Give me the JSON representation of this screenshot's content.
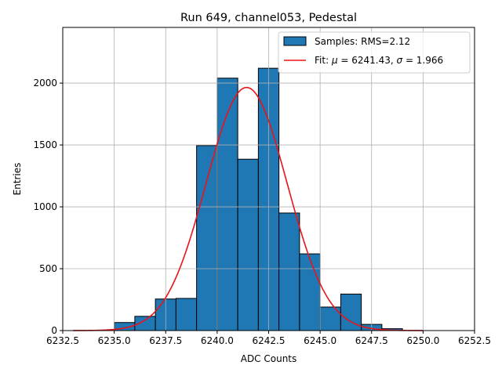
{
  "chart_data": {
    "type": "bar",
    "title": "Run 649, channel053, Pedestal",
    "xlabel": "ADC Counts",
    "ylabel": "Entries",
    "xlim": [
      6232.5,
      6252.5
    ],
    "ylim": [
      0,
      2450
    ],
    "x_ticks": [
      6232.5,
      6235.0,
      6237.5,
      6240.0,
      6242.5,
      6245.0,
      6247.5,
      6250.0,
      6252.5
    ],
    "x_tick_labels": [
      "6232.5",
      "6235.0",
      "6237.5",
      "6240.0",
      "6242.5",
      "6245.0",
      "6247.5",
      "6250.0",
      "6252.5"
    ],
    "y_ticks": [
      0,
      500,
      1000,
      1500,
      2000
    ],
    "y_tick_labels": [
      "0",
      "500",
      "1000",
      "1500",
      "2000"
    ],
    "grid": true,
    "legend_position": "top-right",
    "bins": [
      {
        "x0": 6235,
        "x1": 6236,
        "value": 65
      },
      {
        "x0": 6236,
        "x1": 6237,
        "value": 115
      },
      {
        "x0": 6237,
        "x1": 6238,
        "value": 255
      },
      {
        "x0": 6238,
        "x1": 6239,
        "value": 260
      },
      {
        "x0": 6239,
        "x1": 6240,
        "value": 1495
      },
      {
        "x0": 6240,
        "x1": 6241,
        "value": 2040
      },
      {
        "x0": 6241,
        "x1": 6242,
        "value": 1385
      },
      {
        "x0": 6242,
        "x1": 6243,
        "value": 2120
      },
      {
        "x0": 6243,
        "x1": 6244,
        "value": 950
      },
      {
        "x0": 6244,
        "x1": 6245,
        "value": 620
      },
      {
        "x0": 6245,
        "x1": 6246,
        "value": 190
      },
      {
        "x0": 6246,
        "x1": 6247,
        "value": 295
      },
      {
        "x0": 6247,
        "x1": 6248,
        "value": 50
      },
      {
        "x0": 6248,
        "x1": 6249,
        "value": 15
      }
    ],
    "fit": {
      "mu": 6241.43,
      "sigma": 1.966,
      "amplitude": 1965,
      "x_range": [
        6233.0,
        6250.0
      ]
    },
    "series": [
      {
        "name": "Samples: RMS=2.12",
        "color": "#1f77b4",
        "kind": "histogram"
      },
      {
        "name": "Fit: ",
        "name_mu": "μ",
        "name_mid": " = 6241.43, ",
        "name_sigma": "σ",
        "name_end": " = 1.966",
        "color": "#e8141a",
        "kind": "line"
      }
    ]
  }
}
